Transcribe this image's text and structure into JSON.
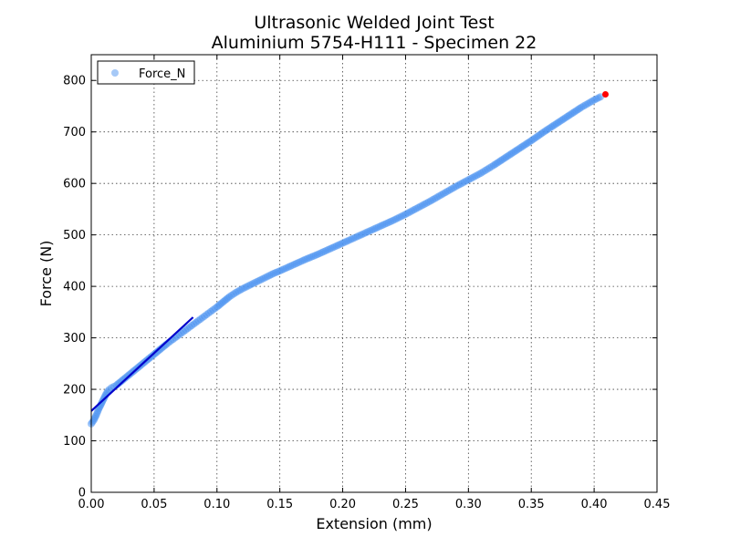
{
  "chart_data": {
    "type": "scatter",
    "title": [
      "Ultrasonic Welded Joint Test",
      "Aluminium 5754-H111 - Specimen 22"
    ],
    "xlabel": "Extension (mm)",
    "ylabel": "Force (N)",
    "xlim": [
      0,
      0.45
    ],
    "ylim": [
      0,
      850
    ],
    "xticks": [
      0.0,
      0.05,
      0.1,
      0.15,
      0.2,
      0.25,
      0.3,
      0.35,
      0.4,
      0.45
    ],
    "xtick_labels": [
      "0.00",
      "0.05",
      "0.10",
      "0.15",
      "0.20",
      "0.25",
      "0.30",
      "0.35",
      "0.40",
      "0.45"
    ],
    "yticks": [
      0,
      100,
      200,
      300,
      400,
      500,
      600,
      700,
      800
    ],
    "ytick_labels": [
      "0",
      "100",
      "200",
      "300",
      "400",
      "500",
      "600",
      "700",
      "800"
    ],
    "grid": true,
    "legend": {
      "position": "top-left",
      "entries": [
        "Force_N"
      ]
    },
    "series": [
      {
        "name": "Force_N",
        "color": "#4d94f0",
        "marker": "circle",
        "points": [
          [
            0.0,
            133
          ],
          [
            0.002,
            140
          ],
          [
            0.004,
            150
          ],
          [
            0.006,
            162
          ],
          [
            0.008,
            172
          ],
          [
            0.01,
            182
          ],
          [
            0.012,
            192
          ],
          [
            0.014,
            199
          ],
          [
            0.016,
            203
          ],
          [
            0.02,
            208
          ],
          [
            0.025,
            218
          ],
          [
            0.03,
            228
          ],
          [
            0.035,
            238
          ],
          [
            0.04,
            248
          ],
          [
            0.045,
            258
          ],
          [
            0.05,
            268
          ],
          [
            0.055,
            278
          ],
          [
            0.06,
            288
          ],
          [
            0.065,
            297
          ],
          [
            0.07,
            306
          ],
          [
            0.075,
            315
          ],
          [
            0.08,
            324
          ],
          [
            0.085,
            333
          ],
          [
            0.09,
            342
          ],
          [
            0.095,
            351
          ],
          [
            0.1,
            360
          ],
          [
            0.105,
            370
          ],
          [
            0.11,
            380
          ],
          [
            0.115,
            388
          ],
          [
            0.12,
            395
          ],
          [
            0.125,
            401
          ],
          [
            0.13,
            407
          ],
          [
            0.135,
            413
          ],
          [
            0.14,
            419
          ],
          [
            0.145,
            425
          ],
          [
            0.15,
            430
          ],
          [
            0.16,
            441
          ],
          [
            0.17,
            452
          ],
          [
            0.18,
            462
          ],
          [
            0.19,
            473
          ],
          [
            0.2,
            484
          ],
          [
            0.21,
            495
          ],
          [
            0.22,
            506
          ],
          [
            0.23,
            517
          ],
          [
            0.24,
            528
          ],
          [
            0.25,
            540
          ],
          [
            0.26,
            553
          ],
          [
            0.27,
            566
          ],
          [
            0.28,
            580
          ],
          [
            0.29,
            594
          ],
          [
            0.3,
            607
          ],
          [
            0.31,
            620
          ],
          [
            0.32,
            635
          ],
          [
            0.33,
            651
          ],
          [
            0.34,
            667
          ],
          [
            0.35,
            683
          ],
          [
            0.36,
            700
          ],
          [
            0.37,
            716
          ],
          [
            0.38,
            732
          ],
          [
            0.39,
            748
          ],
          [
            0.4,
            762
          ],
          [
            0.405,
            768
          ]
        ]
      },
      {
        "name": "",
        "color": "#0000cc",
        "kind": "line",
        "points": [
          [
            0.0,
            158
          ],
          [
            0.081,
            340
          ]
        ]
      },
      {
        "name": "",
        "color": "#ff0000",
        "kind": "point",
        "points": [
          [
            0.409,
            773
          ]
        ]
      }
    ]
  }
}
